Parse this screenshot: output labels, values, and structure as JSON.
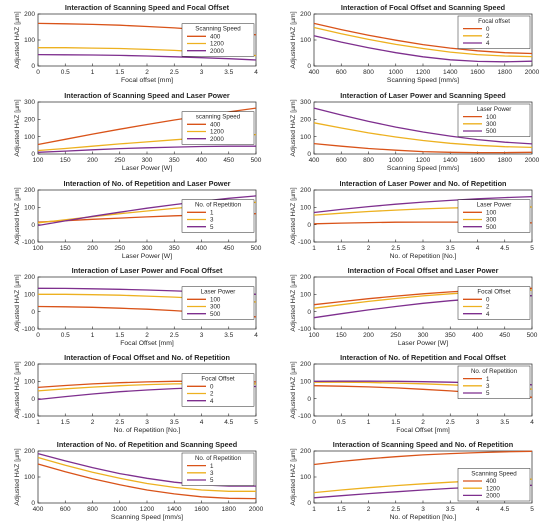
{
  "figure": {
    "background": "#ffffff",
    "series_colors": [
      "#d95319",
      "#edb120",
      "#7e2f8e"
    ]
  },
  "chart_data": [
    {
      "type": "line",
      "title": "Interaction of Scanning Speed and Focal Offset",
      "xlabel": "Focal offset [mm]",
      "ylabel": "Adjusted HAZ [µm]",
      "xlim": [
        0,
        4
      ],
      "ylim": [
        0,
        250
      ],
      "xticks": [
        "0",
        "0.5",
        "1",
        "1.5",
        "2",
        "2.5",
        "3",
        "3.5",
        "4"
      ],
      "yticks": [
        "0",
        "100",
        "200"
      ],
      "legend": {
        "title": "Scanning Speed",
        "position": "right-middle"
      },
      "x": [
        0,
        0.5,
        1,
        1.5,
        2,
        2.5,
        3,
        3.5,
        4
      ],
      "series": [
        {
          "name": "400",
          "values": [
            205,
            203,
            200,
            196,
            190,
            183,
            174,
            163,
            150
          ]
        },
        {
          "name": "1200",
          "values": [
            88,
            88,
            86,
            84,
            80,
            75,
            68,
            60,
            50
          ]
        },
        {
          "name": "2000",
          "values": [
            55,
            54,
            53,
            51,
            48,
            44,
            40,
            35,
            29
          ]
        }
      ]
    },
    {
      "type": "line",
      "title": "Interaction of Focal Offset and Scanning Speed",
      "xlabel": "Scanning Speed [mm/s]",
      "ylabel": "Adjusted HAZ [µm]",
      "xlim": [
        400,
        2000
      ],
      "ylim": [
        0,
        250
      ],
      "xticks": [
        "400",
        "600",
        "800",
        "1000",
        "1200",
        "1400",
        "1600",
        "1800",
        "2000"
      ],
      "yticks": [
        "0",
        "100",
        "200"
      ],
      "legend": {
        "title": "Focal offset",
        "position": "top-right"
      },
      "x": [
        400,
        600,
        800,
        1000,
        1200,
        1400,
        1600,
        1800,
        2000
      ],
      "series": [
        {
          "name": "0",
          "values": [
            205,
            175,
            148,
            124,
            103,
            86,
            73,
            64,
            60
          ]
        },
        {
          "name": "2",
          "values": [
            185,
            155,
            128,
            104,
            84,
            67,
            55,
            48,
            45
          ]
        },
        {
          "name": "4",
          "values": [
            145,
            115,
            88,
            64,
            44,
            30,
            22,
            20,
            23
          ]
        }
      ]
    },
    {
      "type": "line",
      "title": "Interaction of Scanning Speed and Laser Power",
      "xlabel": "Laser Power [W]",
      "ylabel": "Adjusted HAZ [µm]",
      "xlim": [
        100,
        500
      ],
      "ylim": [
        0,
        300
      ],
      "xticks": [
        "100",
        "150",
        "200",
        "250",
        "300",
        "350",
        "400",
        "450",
        "500"
      ],
      "yticks": [
        "0",
        "100",
        "200",
        "300"
      ],
      "legend": {
        "title": "scanning Speed",
        "position": "right-middle"
      },
      "x": [
        100,
        150,
        200,
        250,
        300,
        350,
        400,
        450,
        500
      ],
      "series": [
        {
          "name": "400",
          "values": [
            55,
            85,
            115,
            143,
            170,
            196,
            220,
            243,
            265
          ]
        },
        {
          "name": "1200",
          "values": [
            20,
            32,
            45,
            58,
            70,
            82,
            93,
            103,
            112
          ]
        },
        {
          "name": "2000",
          "values": [
            10,
            17,
            24,
            31,
            36,
            40,
            43,
            45,
            45
          ]
        }
      ]
    },
    {
      "type": "line",
      "title": "Interaction of Laser Power and Scanning Speed",
      "xlabel": "Scanning Speed [mm/s]",
      "ylabel": "Adjusted HAZ [µm]",
      "xlim": [
        400,
        2000
      ],
      "ylim": [
        0,
        300
      ],
      "xticks": [
        "400",
        "600",
        "800",
        "1000",
        "1200",
        "1400",
        "1600",
        "1800",
        "2000"
      ],
      "yticks": [
        "0",
        "100",
        "200",
        "300"
      ],
      "legend": {
        "title": "Laser Power",
        "position": "top-right"
      },
      "x": [
        400,
        600,
        800,
        1000,
        1200,
        1400,
        1600,
        1800,
        2000
      ],
      "series": [
        {
          "name": "100",
          "values": [
            60,
            45,
            32,
            22,
            14,
            10,
            8,
            8,
            10
          ]
        },
        {
          "name": "300",
          "values": [
            180,
            150,
            122,
            98,
            78,
            62,
            50,
            42,
            38
          ]
        },
        {
          "name": "500",
          "values": [
            265,
            225,
            188,
            155,
            127,
            103,
            83,
            68,
            58
          ]
        }
      ]
    },
    {
      "type": "line",
      "title": "Interaction of No. of Repetition and Laser Power",
      "xlabel": "Laser Power [W]",
      "ylabel": "Adjusted HAZ [µm]",
      "xlim": [
        100,
        500
      ],
      "ylim": [
        -100,
        200
      ],
      "xticks": [
        "100",
        "150",
        "200",
        "250",
        "300",
        "350",
        "400",
        "450",
        "500"
      ],
      "yticks": [
        "-100",
        "0",
        "100",
        "200"
      ],
      "legend": {
        "title": "No. of Repetition",
        "position": "right-middle"
      },
      "x": [
        100,
        150,
        200,
        250,
        300,
        350,
        400,
        450,
        500
      ],
      "series": [
        {
          "name": "1",
          "values": [
            15,
            23,
            31,
            38,
            45,
            51,
            56,
            60,
            63
          ]
        },
        {
          "name": "3",
          "values": [
            10,
            28,
            46,
            63,
            79,
            94,
            107,
            119,
            129
          ]
        },
        {
          "name": "5",
          "values": [
            -5,
            22,
            48,
            72,
            95,
            116,
            135,
            152,
            166
          ]
        }
      ]
    },
    {
      "type": "line",
      "title": "Interaction of Laser Power and No. of Repetition",
      "xlabel": "No. of Repetition [No.]",
      "ylabel": "Adjusted HAZ [µm]",
      "xlim": [
        1,
        5
      ],
      "ylim": [
        -100,
        200
      ],
      "xticks": [
        "1",
        "1.5",
        "2",
        "2.5",
        "3",
        "3.5",
        "4",
        "4.5",
        "5"
      ],
      "yticks": [
        "-100",
        "0",
        "100",
        "200"
      ],
      "legend": {
        "title": "Laser Power",
        "position": "right-middle"
      },
      "x": [
        1,
        1.5,
        2,
        2.5,
        3,
        3.5,
        4,
        4.5,
        5
      ],
      "series": [
        {
          "name": "100",
          "values": [
            5,
            9,
            12,
            14,
            15,
            15,
            14,
            12,
            10
          ]
        },
        {
          "name": "300",
          "values": [
            55,
            66,
            76,
            84,
            91,
            96,
            99,
            101,
            102
          ]
        },
        {
          "name": "500",
          "values": [
            70,
            88,
            104,
            118,
            130,
            140,
            149,
            156,
            162
          ]
        }
      ]
    },
    {
      "type": "line",
      "title": "Interaction of Laser Power and Focal Offset",
      "xlabel": "Focal Offset [mm]",
      "ylabel": "Adjusted HAZ [µm]",
      "xlim": [
        0,
        4
      ],
      "ylim": [
        -100,
        200
      ],
      "xticks": [
        "0",
        "0.5",
        "1",
        "1.5",
        "2",
        "2.5",
        "3",
        "3.5",
        "4"
      ],
      "yticks": [
        "-100",
        "0",
        "100",
        "200"
      ],
      "legend": {
        "title": "Laser Power",
        "position": "right-middle"
      },
      "x": [
        0,
        0.5,
        1,
        1.5,
        2,
        2.5,
        3,
        3.5,
        4
      ],
      "series": [
        {
          "name": "100",
          "values": [
            30,
            28,
            25,
            20,
            14,
            6,
            -4,
            -16,
            -30
          ]
        },
        {
          "name": "300",
          "values": [
            100,
            100,
            98,
            95,
            90,
            84,
            76,
            67,
            56
          ]
        },
        {
          "name": "500",
          "values": [
            135,
            134,
            132,
            129,
            125,
            120,
            114,
            107,
            100
          ]
        }
      ]
    },
    {
      "type": "line",
      "title": "Interaction of Focal Offset and Laser Power",
      "xlabel": "Laser Power [W]",
      "ylabel": "Adjusted HAZ [µm]",
      "xlim": [
        100,
        500
      ],
      "ylim": [
        -100,
        200
      ],
      "xticks": [
        "100",
        "150",
        "200",
        "250",
        "300",
        "350",
        "400",
        "450",
        "500"
      ],
      "yticks": [
        "-100",
        "0",
        "100",
        "200"
      ],
      "legend": {
        "title": "Focal Offset",
        "position": "right-middle"
      },
      "x": [
        100,
        150,
        200,
        250,
        300,
        350,
        400,
        450,
        500
      ],
      "series": [
        {
          "name": "0",
          "values": [
            40,
            58,
            75,
            90,
            103,
            114,
            123,
            130,
            135
          ]
        },
        {
          "name": "2",
          "values": [
            20,
            40,
            59,
            76,
            91,
            103,
            113,
            120,
            125
          ]
        },
        {
          "name": "4",
          "values": [
            -35,
            -12,
            10,
            30,
            48,
            63,
            75,
            85,
            92
          ]
        }
      ]
    },
    {
      "type": "line",
      "title": "Interaction of Focal Offset and No. of Repetition",
      "xlabel": "No. of Repetition [No.]",
      "ylabel": "Adjusted HAZ [µm]",
      "xlim": [
        1,
        5
      ],
      "ylim": [
        -100,
        200
      ],
      "xticks": [
        "1",
        "1.5",
        "2",
        "2.5",
        "3",
        "3.5",
        "4",
        "4.5",
        "5"
      ],
      "yticks": [
        "-100",
        "0",
        "100",
        "200"
      ],
      "legend": {
        "title": "Focal Offset",
        "position": "right-middle"
      },
      "x": [
        1,
        1.5,
        2,
        2.5,
        3,
        3.5,
        4,
        4.5,
        5
      ],
      "series": [
        {
          "name": "0",
          "values": [
            65,
            76,
            85,
            92,
            97,
            100,
            101,
            100,
            97
          ]
        },
        {
          "name": "2",
          "values": [
            45,
            57,
            67,
            75,
            81,
            85,
            87,
            87,
            85
          ]
        },
        {
          "name": "4",
          "values": [
            -5,
            12,
            27,
            40,
            50,
            58,
            64,
            68,
            70
          ]
        }
      ]
    },
    {
      "type": "line",
      "title": "Interaction of No. of Repetition and Focal Offset",
      "xlabel": "Focal Offset [mm]",
      "ylabel": "Adjusted HAZ [µm]",
      "xlim": [
        0,
        4
      ],
      "ylim": [
        -100,
        200
      ],
      "xticks": [
        "0",
        "0.5",
        "1",
        "1.5",
        "2",
        "2.5",
        "3",
        "3.5",
        "4"
      ],
      "yticks": [
        "-100",
        "0",
        "100",
        "200"
      ],
      "legend": {
        "title": "No. of Repetition",
        "position": "top-right"
      },
      "x": [
        0,
        0.5,
        1,
        1.5,
        2,
        2.5,
        3,
        3.5,
        4
      ],
      "series": [
        {
          "name": "1",
          "values": [
            75,
            72,
            68,
            62,
            54,
            45,
            34,
            22,
            8
          ]
        },
        {
          "name": "3",
          "values": [
            95,
            95,
            93,
            90,
            86,
            80,
            73,
            65,
            55
          ]
        },
        {
          "name": "5",
          "values": [
            100,
            101,
            101,
            100,
            98,
            95,
            91,
            86,
            80
          ]
        }
      ]
    },
    {
      "type": "line",
      "title": "Interaction of No. of Repetition and Scanning Speed",
      "xlabel": "Scanning Speed [mm/s]",
      "ylabel": "Adjusted HAZ [µm]",
      "xlim": [
        400,
        2000
      ],
      "ylim": [
        0,
        200
      ],
      "xticks": [
        "400",
        "600",
        "800",
        "1000",
        "1200",
        "1400",
        "1600",
        "1800",
        "2000"
      ],
      "yticks": [
        "0",
        "100",
        "200"
      ],
      "legend": {
        "title": "No. of Repetition",
        "position": "top-right"
      },
      "x": [
        400,
        600,
        800,
        1000,
        1200,
        1400,
        1600,
        1800,
        2000
      ],
      "series": [
        {
          "name": "1",
          "values": [
            150,
            120,
            93,
            70,
            50,
            35,
            24,
            18,
            17
          ]
        },
        {
          "name": "3",
          "values": [
            175,
            145,
            118,
            95,
            75,
            60,
            50,
            45,
            45
          ]
        },
        {
          "name": "5",
          "values": [
            190,
            162,
            136,
            113,
            95,
            80,
            70,
            65,
            65
          ]
        }
      ]
    },
    {
      "type": "line",
      "title": "Interaction of Scanning Speed and No. of Repetition",
      "xlabel": "No. of Repetition [No.]",
      "ylabel": "Adjusted HAZ [µm]",
      "xlim": [
        1,
        5
      ],
      "ylim": [
        0,
        200
      ],
      "xticks": [
        "1",
        "1.5",
        "2",
        "2.5",
        "3",
        "3.5",
        "4",
        "4.5",
        "5"
      ],
      "yticks": [
        "0",
        "100",
        "200"
      ],
      "legend": {
        "title": "Scanning Speed",
        "position": "right-bottom"
      },
      "x": [
        1,
        1.5,
        2,
        2.5,
        3,
        3.5,
        4,
        4.5,
        5
      ],
      "series": [
        {
          "name": "400",
          "values": [
            148,
            160,
            170,
            178,
            185,
            190,
            194,
            197,
            199
          ]
        },
        {
          "name": "1200",
          "values": [
            40,
            50,
            59,
            67,
            74,
            80,
            85,
            89,
            92
          ]
        },
        {
          "name": "2000",
          "values": [
            20,
            28,
            36,
            43,
            50,
            56,
            61,
            65,
            68
          ]
        }
      ]
    }
  ]
}
